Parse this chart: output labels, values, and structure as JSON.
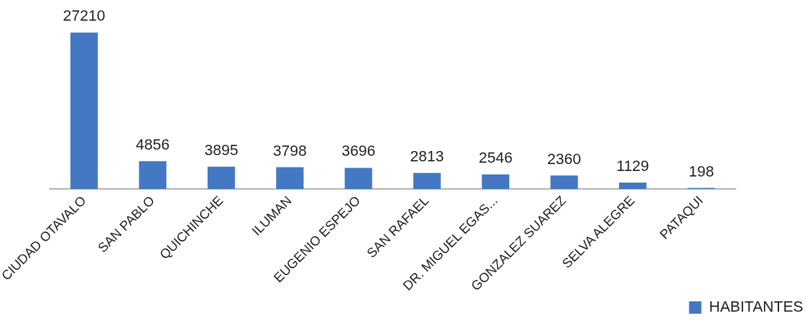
{
  "chart_data": {
    "type": "bar",
    "categories": [
      "CIUDAD OTAVALO",
      "SAN PABLO",
      "QUICHINCHE",
      "ILUMAN",
      "EUGENIO ESPEJO",
      "SAN RAFAEL",
      "DR. MIGUEL EGAS...",
      "GONZALEZ SUAREZ",
      "SELVA ALEGRE",
      "PATAQUI"
    ],
    "series": [
      {
        "name": "HABITANTES",
        "color": "#4478c2",
        "values": [
          27210,
          4856,
          3895,
          3798,
          3696,
          2813,
          2546,
          2360,
          1129,
          198
        ]
      }
    ],
    "data_labels": true,
    "legend": "bottom right",
    "tick_labels": "x"
  }
}
